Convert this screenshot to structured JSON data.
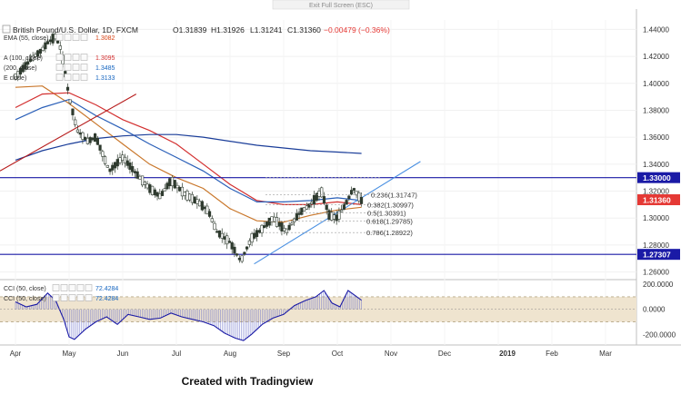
{
  "topbar": {
    "exit_label": "Exit Full Screen (ESC)"
  },
  "header": {
    "symbol": "British Pound/U.S. Dollar, 1D, FXCM",
    "open": "O1.31839",
    "high": "H1.31926",
    "low": "L1.31241",
    "close": "C1.31360",
    "change": "−0.00479 (−0.36%)"
  },
  "indicators": [
    {
      "label": "EMA (55, close)",
      "value": "1.3082",
      "color": "#d84315"
    },
    {
      "label": "A (100, close)",
      "value": "1.3095",
      "color": "#d32f2f"
    },
    {
      "label": "(200, close)",
      "value": "1.3485",
      "color": "#1565c0"
    },
    {
      "label": "E close)",
      "value": "1.3133",
      "color": "#1565c0"
    }
  ],
  "cci_legend": [
    {
      "label": "CCI (50, close)",
      "value": "72.4284"
    },
    {
      "label": "CCI (50, close)",
      "value": "72.4284"
    }
  ],
  "caption": "Created with Tradingview",
  "colors": {
    "up": "#26a69a",
    "down": "#ef5350",
    "candle": "#2e3a2e",
    "ema55": "#c9772b",
    "sma100": "#d32f2f",
    "sma200": "#1a3d99",
    "ema_blue": "#2a5fb8",
    "level": "#1a1aa6",
    "trend_up": "#4a90e2",
    "trend_red": "#b71c1c",
    "price_badge": "#e53935",
    "cci": "#1a1aa6",
    "cci_band": "#efe4cf"
  },
  "chart_data": {
    "type": "line",
    "title": "British Pound/U.S. Dollar, 1D, FXCM",
    "x_ticks": [
      "Apr",
      "May",
      "Jun",
      "Jul",
      "Aug",
      "Sep",
      "Oct",
      "Nov",
      "Dec",
      "2019",
      "Feb",
      "Mar"
    ],
    "y_ticks": [
      "1.44000",
      "1.42000",
      "1.40000",
      "1.38000",
      "1.36000",
      "1.34000",
      "1.32000",
      "1.30000",
      "1.28000",
      "1.26000"
    ],
    "ylim": [
      1.255,
      1.447
    ],
    "horizontal_levels": [
      {
        "label": "1.33000",
        "value": 1.33
      },
      {
        "label": "1.27307",
        "value": 1.27307
      }
    ],
    "last_price": {
      "label": "1.31360",
      "value": 1.3136
    },
    "fibonacci": [
      {
        "label": "0.236(1.31747)",
        "value": 1.31747
      },
      {
        "label": "0.382(1.30997)",
        "value": 1.30997
      },
      {
        "label": "0.5(1.30391)",
        "value": 1.30391
      },
      {
        "label": "0.618(1.29785)",
        "value": 1.29785
      },
      {
        "label": "0.786(1.28922)",
        "value": 1.28922
      }
    ],
    "trendlines": [
      {
        "name": "uptrend",
        "from": [
          "Aug",
          1.266
        ],
        "to": [
          "Dec",
          1.342
        ]
      },
      {
        "name": "old-support",
        "from": [
          "Apr",
          1.335
        ],
        "to": [
          "Jul",
          1.392
        ]
      }
    ],
    "price_path": [
      {
        "x": 0.0,
        "y": 1.405
      },
      {
        "x": 0.3,
        "y": 1.418
      },
      {
        "x": 0.5,
        "y": 1.425
      },
      {
        "x": 0.6,
        "y": 1.43
      },
      {
        "x": 0.75,
        "y": 1.435
      },
      {
        "x": 0.85,
        "y": 1.425
      },
      {
        "x": 1.0,
        "y": 1.39
      },
      {
        "x": 1.15,
        "y": 1.365
      },
      {
        "x": 1.35,
        "y": 1.357
      },
      {
        "x": 1.5,
        "y": 1.36
      },
      {
        "x": 1.75,
        "y": 1.335
      },
      {
        "x": 2.0,
        "y": 1.345
      },
      {
        "x": 2.25,
        "y": 1.333
      },
      {
        "x": 2.5,
        "y": 1.322
      },
      {
        "x": 2.7,
        "y": 1.316
      },
      {
        "x": 2.9,
        "y": 1.328
      },
      {
        "x": 3.15,
        "y": 1.318
      },
      {
        "x": 3.4,
        "y": 1.312
      },
      {
        "x": 3.6,
        "y": 1.305
      },
      {
        "x": 3.75,
        "y": 1.29
      },
      {
        "x": 4.0,
        "y": 1.282
      },
      {
        "x": 4.2,
        "y": 1.268
      },
      {
        "x": 4.4,
        "y": 1.285
      },
      {
        "x": 4.6,
        "y": 1.292
      },
      {
        "x": 4.8,
        "y": 1.3
      },
      {
        "x": 5.05,
        "y": 1.29
      },
      {
        "x": 5.3,
        "y": 1.304
      },
      {
        "x": 5.5,
        "y": 1.31
      },
      {
        "x": 5.7,
        "y": 1.32
      },
      {
        "x": 5.85,
        "y": 1.302
      },
      {
        "x": 6.0,
        "y": 1.3
      },
      {
        "x": 6.15,
        "y": 1.31
      },
      {
        "x": 6.3,
        "y": 1.322
      },
      {
        "x": 6.45,
        "y": 1.313
      }
    ],
    "series": [
      {
        "values": [
          [
            0,
            1.397
          ],
          [
            0.5,
            1.398
          ],
          [
            1,
            1.385
          ],
          [
            1.5,
            1.37
          ],
          [
            2,
            1.355
          ],
          [
            2.5,
            1.34
          ],
          [
            3,
            1.33
          ],
          [
            3.5,
            1.322
          ],
          [
            4,
            1.307
          ],
          [
            4.5,
            1.298
          ],
          [
            5,
            1.297
          ],
          [
            5.5,
            1.302
          ],
          [
            6,
            1.306
          ],
          [
            6.45,
            1.308
          ]
        ]
      },
      {
        "values": [
          [
            0,
            1.382
          ],
          [
            0.5,
            1.392
          ],
          [
            1,
            1.393
          ],
          [
            1.5,
            1.384
          ],
          [
            2,
            1.373
          ],
          [
            2.5,
            1.365
          ],
          [
            3,
            1.355
          ],
          [
            3.5,
            1.34
          ],
          [
            4,
            1.325
          ],
          [
            4.5,
            1.313
          ],
          [
            5,
            1.31
          ],
          [
            5.5,
            1.31
          ],
          [
            6,
            1.312
          ],
          [
            6.45,
            1.31
          ]
        ]
      },
      {
        "values": [
          [
            0,
            1.373
          ],
          [
            0.5,
            1.382
          ],
          [
            1,
            1.388
          ],
          [
            1.5,
            1.376
          ],
          [
            2,
            1.366
          ],
          [
            2.5,
            1.355
          ],
          [
            3,
            1.345
          ],
          [
            3.5,
            1.335
          ],
          [
            4,
            1.322
          ],
          [
            4.5,
            1.312
          ],
          [
            5,
            1.312
          ],
          [
            5.5,
            1.313
          ],
          [
            6,
            1.315
          ],
          [
            6.45,
            1.313
          ]
        ]
      },
      {
        "values": [
          [
            0,
            1.343
          ],
          [
            0.5,
            1.35
          ],
          [
            1,
            1.355
          ],
          [
            1.5,
            1.359
          ],
          [
            2,
            1.361
          ],
          [
            2.5,
            1.362
          ],
          [
            3,
            1.362
          ],
          [
            3.5,
            1.36
          ],
          [
            4,
            1.357
          ],
          [
            4.5,
            1.354
          ],
          [
            5,
            1.352
          ],
          [
            5.5,
            1.35
          ],
          [
            6,
            1.349
          ],
          [
            6.45,
            1.348
          ]
        ]
      }
    ],
    "cci": {
      "y_ticks": [
        "200.0000",
        "0.0000",
        "-200.0000"
      ],
      "ylim": [
        -270,
        230
      ],
      "band": [
        -100,
        100
      ],
      "values": [
        [
          0,
          60
        ],
        [
          0.2,
          20
        ],
        [
          0.4,
          40
        ],
        [
          0.6,
          130
        ],
        [
          0.75,
          70
        ],
        [
          0.9,
          -80
        ],
        [
          1.0,
          -220
        ],
        [
          1.1,
          -240
        ],
        [
          1.3,
          -160
        ],
        [
          1.5,
          -100
        ],
        [
          1.7,
          -60
        ],
        [
          1.9,
          -120
        ],
        [
          2.1,
          -40
        ],
        [
          2.3,
          -60
        ],
        [
          2.5,
          -80
        ],
        [
          2.7,
          -70
        ],
        [
          2.9,
          -30
        ],
        [
          3.1,
          -60
        ],
        [
          3.3,
          -80
        ],
        [
          3.5,
          -100
        ],
        [
          3.7,
          -130
        ],
        [
          3.9,
          -190
        ],
        [
          4.1,
          -230
        ],
        [
          4.25,
          -250
        ],
        [
          4.4,
          -200
        ],
        [
          4.6,
          -120
        ],
        [
          4.8,
          -70
        ],
        [
          5.0,
          -40
        ],
        [
          5.2,
          30
        ],
        [
          5.4,
          70
        ],
        [
          5.6,
          100
        ],
        [
          5.75,
          150
        ],
        [
          5.9,
          50
        ],
        [
          6.05,
          20
        ],
        [
          6.2,
          150
        ],
        [
          6.3,
          120
        ],
        [
          6.45,
          72.43
        ]
      ]
    }
  }
}
